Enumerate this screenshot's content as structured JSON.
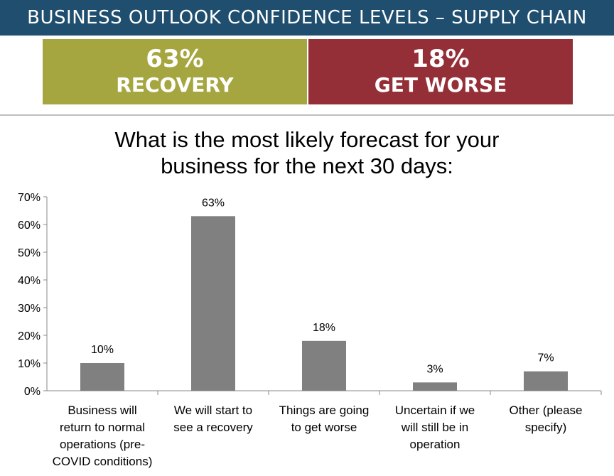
{
  "header": {
    "banner_title": "BUSINESS OUTLOOK CONFIDENCE LEVELS – SUPPLY CHAIN",
    "kpis": [
      {
        "value": "63%",
        "label": "RECOVERY",
        "color": "#a6a640"
      },
      {
        "value": "18%",
        "label": "GET WORSE",
        "color": "#952f37"
      }
    ],
    "banner_color": "#1f4e6e"
  },
  "chart_data": {
    "type": "bar",
    "title_lines": [
      "What is the most likely forecast for your",
      "business for the next 30 days:"
    ],
    "categories": [
      "Business will return to normal operations (pre-COVID conditions)",
      "We will start to see a recovery",
      "Things are going to get worse",
      "Uncertain if we will still be in operation",
      "Other (please specify)"
    ],
    "category_lines": [
      [
        "Business will",
        "return to normal",
        "operations (pre-",
        "COVID conditions)"
      ],
      [
        "We will start to",
        "see a recovery"
      ],
      [
        "Things are going",
        "to get worse"
      ],
      [
        "Uncertain if we",
        "will still be in",
        "operation"
      ],
      [
        "Other (please",
        "specify)"
      ]
    ],
    "values": [
      10,
      63,
      18,
      3,
      7
    ],
    "data_labels": [
      "10%",
      "63%",
      "18%",
      "3%",
      "7%"
    ],
    "y_ticks": [
      "0%",
      "10%",
      "20%",
      "30%",
      "40%",
      "50%",
      "60%",
      "70%"
    ],
    "ylim": [
      0,
      70
    ],
    "bar_color": "#808080",
    "xlabel": "",
    "ylabel": ""
  }
}
